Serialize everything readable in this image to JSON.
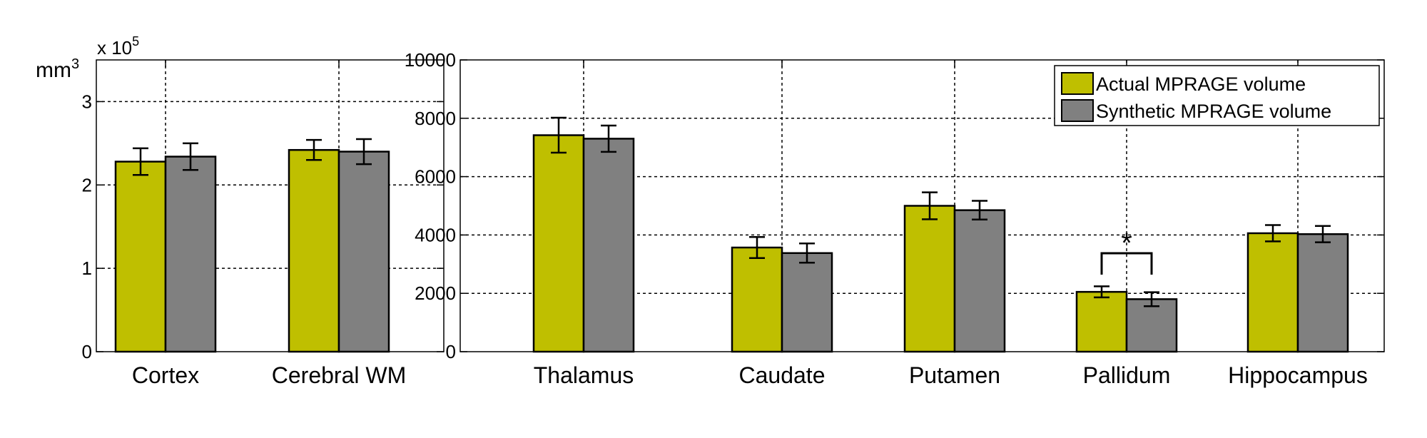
{
  "chart_data": [
    {
      "type": "bar",
      "categories": [
        "Cortex",
        "Cerebral WM"
      ],
      "series": [
        {
          "name": "Actual MPRAGE volume",
          "values": [
            2.28,
            2.42
          ],
          "errors": [
            0.16,
            0.12
          ]
        },
        {
          "name": "Synthetic MPRAGE volume",
          "values": [
            2.34,
            2.4
          ],
          "errors": [
            0.16,
            0.15
          ]
        }
      ],
      "ylabel": "mm",
      "ylabel_exponent": "3",
      "multiplier": "x 10",
      "multiplier_exponent": "5",
      "ylim": [
        0,
        3.5
      ],
      "yticks": [
        "0",
        "1",
        "2",
        "3"
      ],
      "yticks_values": [
        0,
        1,
        2,
        3
      ],
      "grid": true
    },
    {
      "type": "bar",
      "categories": [
        "Thalamus",
        "Caudate",
        "Putamen",
        "Pallidum",
        "Hippocampus"
      ],
      "series": [
        {
          "name": "Actual MPRAGE volume",
          "values": [
            7420,
            3570,
            5000,
            2050,
            4060
          ],
          "errors": [
            600,
            360,
            460,
            190,
            280
          ]
        },
        {
          "name": "Synthetic MPRAGE volume",
          "values": [
            7300,
            3380,
            4850,
            1800,
            4030
          ],
          "errors": [
            450,
            330,
            320,
            240,
            280
          ]
        }
      ],
      "ylim": [
        0,
        10000
      ],
      "yticks": [
        "0",
        "2000",
        "4000",
        "6000",
        "8000",
        "10000"
      ],
      "yticks_values": [
        0,
        2000,
        4000,
        6000,
        8000,
        10000
      ],
      "grid": true,
      "legend": {
        "placement": "top-right",
        "entries": [
          "Actual MPRAGE volume",
          "Synthetic MPRAGE volume"
        ]
      },
      "annotations": [
        {
          "category": "Pallidum",
          "text": "*"
        }
      ]
    }
  ],
  "colors": {
    "actual": "#bfbf00",
    "synthetic": "#808080",
    "axis": "#000000",
    "grid": "#000000"
  }
}
